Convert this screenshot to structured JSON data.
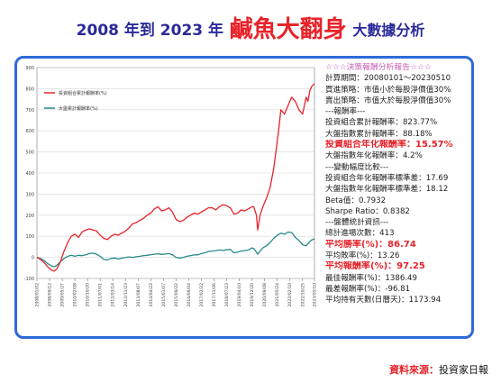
{
  "title": {
    "prefix": "2008 年到 2023 年",
    "highlight": "鹹魚大翻身",
    "suffix": "大數據分析"
  },
  "panel": {
    "lines": [
      {
        "text": "☆☆☆決策報酬分析報告☆☆☆",
        "style": "hdr"
      },
      {
        "text": "計算期間：20080101～20230510",
        "style": ""
      },
      {
        "text": "買進策略：市值小於每股淨價值30%",
        "style": ""
      },
      {
        "text": "賣出策略：市值大於每股淨價值30%",
        "style": ""
      },
      {
        "text": "---報酬率---",
        "style": ""
      },
      {
        "text": "投資組合累計報酬率：823.77%",
        "style": ""
      },
      {
        "text": "大盤指數累計報酬率：88.18%",
        "style": ""
      },
      {
        "text": "投資組合年化報酬率：15.57%",
        "style": "red"
      },
      {
        "text": "大盤指數年化報酬率：4.2%",
        "style": ""
      },
      {
        "text": "---變動幅度比較---",
        "style": ""
      },
      {
        "text": "投資組合年化報酬率標準差：17.69",
        "style": ""
      },
      {
        "text": "大盤指數年化報酬率標準差：18.12",
        "style": ""
      },
      {
        "text": "Beta值：0.7932",
        "style": ""
      },
      {
        "text": "Sharpe Ratio：0.8382",
        "style": ""
      },
      {
        "text": "---盤體統計資訊---",
        "style": ""
      },
      {
        "text": "總計進場次數：413",
        "style": ""
      },
      {
        "text": "平均勝率(%)：86.74",
        "style": "red"
      },
      {
        "text": "平均敗率(%)：13.26",
        "style": ""
      },
      {
        "text": "平均報酬率(%)：97.25",
        "style": "red"
      },
      {
        "text": "最佳報酬率(%)：1386.49",
        "style": ""
      },
      {
        "text": "最差報酬率(%)：-96.81",
        "style": ""
      },
      {
        "text": "平均持有天數(日曆天)：1173.94",
        "style": ""
      }
    ]
  },
  "source": {
    "label": "資料來源：",
    "value": "投資家日報"
  },
  "chart_data": {
    "type": "line",
    "ylim": [
      -100,
      900
    ],
    "yticks": [
      -100,
      0,
      100,
      200,
      300,
      400,
      500,
      600,
      700,
      800,
      900
    ],
    "xlim": [
      2008.0,
      2023.36
    ],
    "legend_position": "top-left",
    "series": [
      {
        "name": "投資組合累計報酬率(%)",
        "color": "#e8232a",
        "points": [
          [
            2008.0,
            0
          ],
          [
            2008.2,
            -10
          ],
          [
            2008.4,
            -25
          ],
          [
            2008.6,
            -45
          ],
          [
            2008.8,
            -60
          ],
          [
            2008.95,
            -65
          ],
          [
            2009.1,
            -55
          ],
          [
            2009.3,
            -20
          ],
          [
            2009.5,
            30
          ],
          [
            2009.7,
            70
          ],
          [
            2009.9,
            100
          ],
          [
            2010.1,
            110
          ],
          [
            2010.3,
            95
          ],
          [
            2010.5,
            120
          ],
          [
            2010.7,
            130
          ],
          [
            2010.9,
            135
          ],
          [
            2011.1,
            130
          ],
          [
            2011.3,
            125
          ],
          [
            2011.5,
            105
          ],
          [
            2011.7,
            90
          ],
          [
            2011.9,
            85
          ],
          [
            2012.1,
            100
          ],
          [
            2012.3,
            110
          ],
          [
            2012.5,
            105
          ],
          [
            2012.7,
            115
          ],
          [
            2012.9,
            125
          ],
          [
            2013.1,
            140
          ],
          [
            2013.3,
            160
          ],
          [
            2013.5,
            165
          ],
          [
            2013.7,
            175
          ],
          [
            2013.9,
            185
          ],
          [
            2014.1,
            200
          ],
          [
            2014.3,
            210
          ],
          [
            2014.5,
            230
          ],
          [
            2014.7,
            240
          ],
          [
            2014.9,
            220
          ],
          [
            2015.1,
            225
          ],
          [
            2015.3,
            235
          ],
          [
            2015.5,
            215
          ],
          [
            2015.7,
            180
          ],
          [
            2015.9,
            170
          ],
          [
            2016.1,
            175
          ],
          [
            2016.3,
            190
          ],
          [
            2016.5,
            200
          ],
          [
            2016.7,
            210
          ],
          [
            2016.9,
            205
          ],
          [
            2017.1,
            215
          ],
          [
            2017.3,
            225
          ],
          [
            2017.5,
            235
          ],
          [
            2017.7,
            235
          ],
          [
            2017.9,
            225
          ],
          [
            2018.1,
            240
          ],
          [
            2018.3,
            250
          ],
          [
            2018.5,
            245
          ],
          [
            2018.7,
            235
          ],
          [
            2018.9,
            205
          ],
          [
            2019.1,
            210
          ],
          [
            2019.3,
            225
          ],
          [
            2019.5,
            220
          ],
          [
            2019.7,
            230
          ],
          [
            2019.9,
            240
          ],
          [
            2020.0,
            240
          ],
          [
            2020.15,
            200
          ],
          [
            2020.22,
            130
          ],
          [
            2020.35,
            200
          ],
          [
            2020.5,
            240
          ],
          [
            2020.7,
            280
          ],
          [
            2020.9,
            330
          ],
          [
            2021.1,
            420
          ],
          [
            2021.3,
            550
          ],
          [
            2021.4,
            620
          ],
          [
            2021.5,
            700
          ],
          [
            2021.7,
            680
          ],
          [
            2021.9,
            720
          ],
          [
            2022.1,
            760
          ],
          [
            2022.3,
            740
          ],
          [
            2022.5,
            700
          ],
          [
            2022.7,
            680
          ],
          [
            2022.9,
            760
          ],
          [
            2023.0,
            740
          ],
          [
            2023.1,
            790
          ],
          [
            2023.2,
            810
          ],
          [
            2023.36,
            823.77
          ]
        ]
      },
      {
        "name": "大盤累計報酬率(%)",
        "color": "#2a8a8a",
        "points": [
          [
            2008.0,
            0
          ],
          [
            2008.2,
            -5
          ],
          [
            2008.4,
            -15
          ],
          [
            2008.6,
            -30
          ],
          [
            2008.8,
            -40
          ],
          [
            2008.95,
            -45
          ],
          [
            2009.1,
            -38
          ],
          [
            2009.3,
            -20
          ],
          [
            2009.5,
            -5
          ],
          [
            2009.7,
            5
          ],
          [
            2009.9,
            10
          ],
          [
            2010.1,
            5
          ],
          [
            2010.3,
            10
          ],
          [
            2010.5,
            8
          ],
          [
            2010.7,
            12
          ],
          [
            2010.9,
            18
          ],
          [
            2011.1,
            20
          ],
          [
            2011.3,
            15
          ],
          [
            2011.5,
            5
          ],
          [
            2011.7,
            -10
          ],
          [
            2011.9,
            -12
          ],
          [
            2012.1,
            -5
          ],
          [
            2012.3,
            -3
          ],
          [
            2012.5,
            -8
          ],
          [
            2012.7,
            -4
          ],
          [
            2012.9,
            0
          ],
          [
            2013.1,
            2
          ],
          [
            2013.3,
            0
          ],
          [
            2013.5,
            3
          ],
          [
            2013.7,
            5
          ],
          [
            2013.9,
            8
          ],
          [
            2014.1,
            10
          ],
          [
            2014.3,
            13
          ],
          [
            2014.5,
            15
          ],
          [
            2014.7,
            17
          ],
          [
            2014.9,
            14
          ],
          [
            2015.1,
            16
          ],
          [
            2015.3,
            18
          ],
          [
            2015.5,
            12
          ],
          [
            2015.7,
            0
          ],
          [
            2015.9,
            -3
          ],
          [
            2016.1,
            0
          ],
          [
            2016.3,
            5
          ],
          [
            2016.5,
            8
          ],
          [
            2016.7,
            12
          ],
          [
            2016.9,
            12
          ],
          [
            2017.1,
            18
          ],
          [
            2017.3,
            22
          ],
          [
            2017.5,
            28
          ],
          [
            2017.7,
            30
          ],
          [
            2017.9,
            32
          ],
          [
            2018.1,
            35
          ],
          [
            2018.3,
            33
          ],
          [
            2018.5,
            36
          ],
          [
            2018.7,
            38
          ],
          [
            2018.9,
            22
          ],
          [
            2019.1,
            25
          ],
          [
            2019.3,
            30
          ],
          [
            2019.5,
            32
          ],
          [
            2019.7,
            35
          ],
          [
            2019.9,
            45
          ],
          [
            2020.0,
            42
          ],
          [
            2020.15,
            25
          ],
          [
            2020.22,
            15
          ],
          [
            2020.35,
            30
          ],
          [
            2020.5,
            45
          ],
          [
            2020.7,
            55
          ],
          [
            2020.9,
            70
          ],
          [
            2021.1,
            90
          ],
          [
            2021.3,
            105
          ],
          [
            2021.4,
            110
          ],
          [
            2021.5,
            115
          ],
          [
            2021.7,
            110
          ],
          [
            2021.9,
            120
          ],
          [
            2022.1,
            118
          ],
          [
            2022.3,
            95
          ],
          [
            2022.5,
            80
          ],
          [
            2022.7,
            60
          ],
          [
            2022.9,
            55
          ],
          [
            2023.0,
            65
          ],
          [
            2023.1,
            75
          ],
          [
            2023.2,
            82
          ],
          [
            2023.36,
            88.18
          ]
        ]
      }
    ],
    "x_tick_labels": [
      "2008/01/02",
      "2008/09/12",
      "2009/05/27",
      "2010/02/08",
      "2010/10/20",
      "2011/07/01",
      "2012/03/14",
      "2012/11/23",
      "2013/08/07",
      "2014/04/22",
      "2015/01/07",
      "2015/09/22",
      "2016/06/04",
      "2017/02/22",
      "2017/11/06",
      "2018/07/23",
      "2019/04/10",
      "2019/12/20",
      "2020/09/08",
      "2021/05/24",
      "2022/02/10",
      "2022/10/25",
      "2023/05/10"
    ],
    "x_tick_positions": [
      2008.0,
      2008.7,
      2009.4,
      2010.1,
      2010.8,
      2011.5,
      2012.2,
      2012.9,
      2013.6,
      2014.3,
      2015.0,
      2015.7,
      2016.4,
      2017.1,
      2017.8,
      2018.5,
      2019.2,
      2019.9,
      2020.6,
      2021.3,
      2022.0,
      2022.7,
      2023.36
    ]
  }
}
